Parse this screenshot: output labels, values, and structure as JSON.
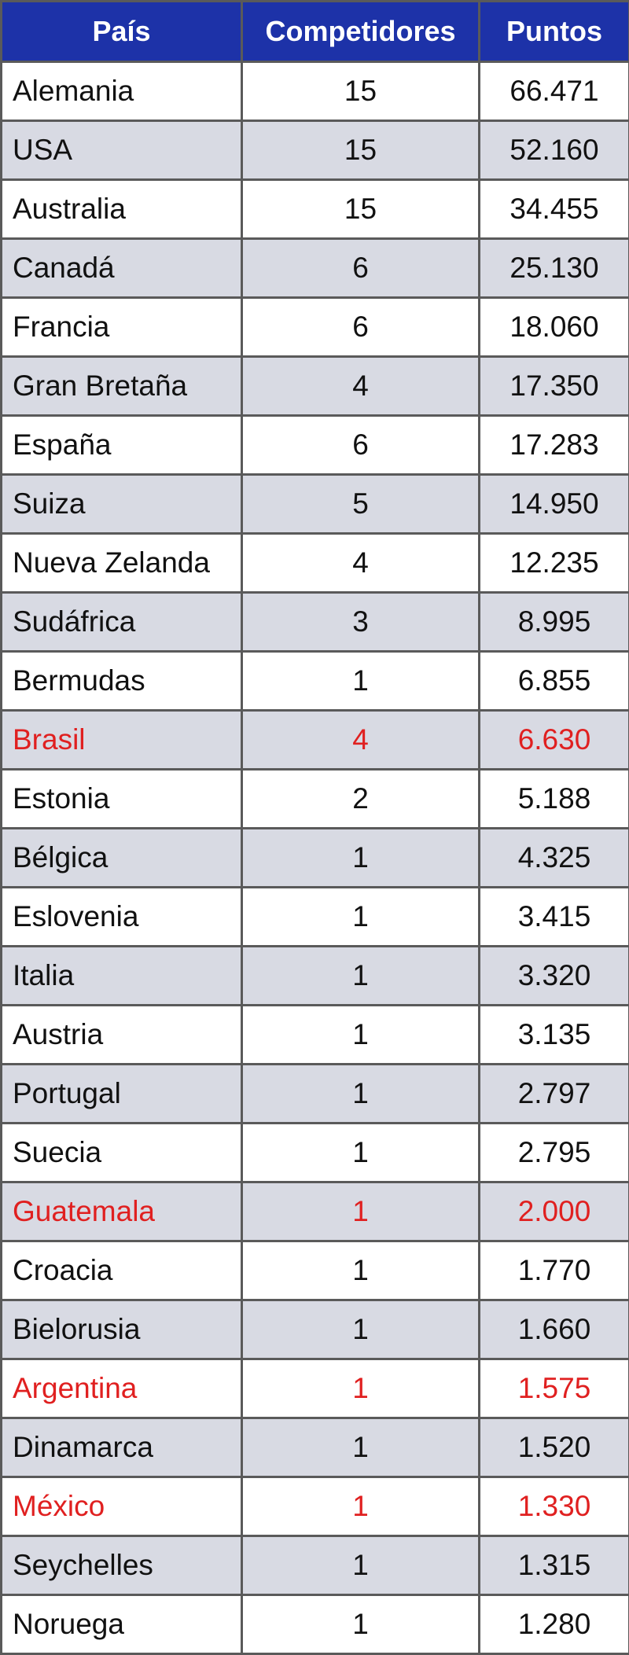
{
  "table": {
    "headers": {
      "country": "País",
      "competitors": "Competidores",
      "points": "Puntos"
    },
    "highlight_color": "#e02020",
    "header_bg": "#1d32a8",
    "stripe_color": "#d8dae3",
    "rows": [
      {
        "country": "Alemania",
        "competitors": "15",
        "points": "66.471",
        "highlight": false
      },
      {
        "country": "USA",
        "competitors": "15",
        "points": "52.160",
        "highlight": false
      },
      {
        "country": "Australia",
        "competitors": "15",
        "points": "34.455",
        "highlight": false
      },
      {
        "country": "Canadá",
        "competitors": "6",
        "points": "25.130",
        "highlight": false
      },
      {
        "country": "Francia",
        "competitors": "6",
        "points": "18.060",
        "highlight": false
      },
      {
        "country": "Gran Bretaña",
        "competitors": "4",
        "points": "17.350",
        "highlight": false
      },
      {
        "country": "España",
        "competitors": "6",
        "points": "17.283",
        "highlight": false
      },
      {
        "country": "Suiza",
        "competitors": "5",
        "points": "14.950",
        "highlight": false
      },
      {
        "country": "Nueva Zelanda",
        "competitors": "4",
        "points": "12.235",
        "highlight": false
      },
      {
        "country": "Sudáfrica",
        "competitors": "3",
        "points": "8.995",
        "highlight": false
      },
      {
        "country": "Bermudas",
        "competitors": "1",
        "points": "6.855",
        "highlight": false
      },
      {
        "country": "Brasil",
        "competitors": "4",
        "points": "6.630",
        "highlight": true
      },
      {
        "country": "Estonia",
        "competitors": "2",
        "points": "5.188",
        "highlight": false
      },
      {
        "country": "Bélgica",
        "competitors": "1",
        "points": "4.325",
        "highlight": false
      },
      {
        "country": "Eslovenia",
        "competitors": "1",
        "points": "3.415",
        "highlight": false
      },
      {
        "country": "Italia",
        "competitors": "1",
        "points": "3.320",
        "highlight": false
      },
      {
        "country": "Austria",
        "competitors": "1",
        "points": "3.135",
        "highlight": false
      },
      {
        "country": "Portugal",
        "competitors": "1",
        "points": "2.797",
        "highlight": false
      },
      {
        "country": "Suecia",
        "competitors": "1",
        "points": "2.795",
        "highlight": false
      },
      {
        "country": "Guatemala",
        "competitors": "1",
        "points": "2.000",
        "highlight": true
      },
      {
        "country": "Croacia",
        "competitors": "1",
        "points": "1.770",
        "highlight": false
      },
      {
        "country": "Bielorusia",
        "competitors": "1",
        "points": "1.660",
        "highlight": false
      },
      {
        "country": "Argentina",
        "competitors": "1",
        "points": "1.575",
        "highlight": true
      },
      {
        "country": "Dinamarca",
        "competitors": "1",
        "points": "1.520",
        "highlight": false
      },
      {
        "country": "México",
        "competitors": "1",
        "points": "1.330",
        "highlight": true
      },
      {
        "country": "Seychelles",
        "competitors": "1",
        "points": "1.315",
        "highlight": false
      },
      {
        "country": "Noruega",
        "competitors": "1",
        "points": "1.280",
        "highlight": false
      }
    ]
  }
}
